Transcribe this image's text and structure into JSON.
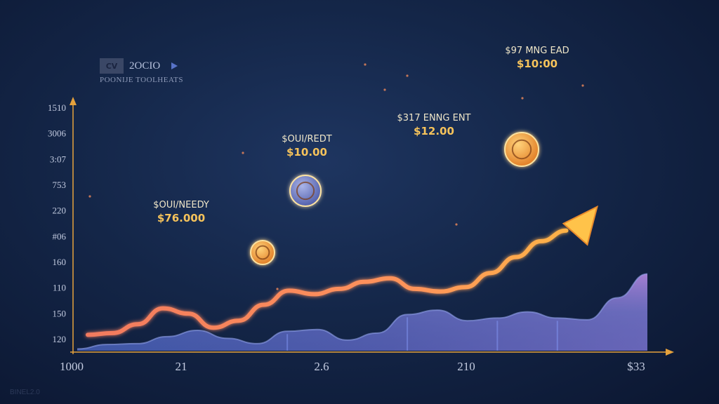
{
  "brand": {
    "logo": "CV",
    "name": "2OCIO",
    "icon": "play-icon",
    "subtitle": "POONIJE TOOLHEATS"
  },
  "watermark": "BINEL2.0",
  "colors": {
    "background": "#142648",
    "area_fill": "#4b5fa8",
    "area_peak": "#a07ad0",
    "trend_line": "#ff8a5c",
    "arrow_head": "#ffc34a",
    "axis": "#e6a23c",
    "annotation_value": "#f6c35b"
  },
  "chart_data": {
    "type": "area",
    "ylim": [
      120,
      1510
    ],
    "y_ticks": [
      "1510",
      "3006",
      "3:07",
      "753",
      "220",
      "#06",
      "160",
      "110",
      "150",
      "120"
    ],
    "x_ticks": [
      "1000",
      "21",
      "2.6",
      "210",
      "$33"
    ],
    "x": [
      0,
      1,
      2,
      3,
      4,
      5,
      6,
      7,
      8,
      9,
      10,
      11,
      12,
      13,
      14,
      15,
      16,
      17,
      18,
      19
    ],
    "series": [
      {
        "values": [
          130,
          155,
          160,
          200,
          235,
          190,
          160,
          230,
          240,
          180,
          220,
          325,
          350,
          290,
          305,
          340,
          305,
          295,
          420,
          555
        ]
      },
      {
        "values": [
          210,
          220,
          270,
          360,
          330,
          250,
          290,
          380,
          460,
          440,
          470,
          510,
          530,
          470,
          455,
          480,
          560,
          650,
          740,
          800
        ]
      }
    ],
    "annotations": [
      {
        "title": "$OUI/NEEDY",
        "value": "$76.000",
        "marker": "coin-icon"
      },
      {
        "title": "$OUI/REDT",
        "value": "$10.00",
        "marker": "coin-icon"
      },
      {
        "title": "$317 ENNG ENT",
        "value": "$12.00",
        "marker": "coin-icon"
      },
      {
        "title": "$97 MNG EAD",
        "value": "$10:00",
        "marker": "coin-icon"
      }
    ]
  }
}
